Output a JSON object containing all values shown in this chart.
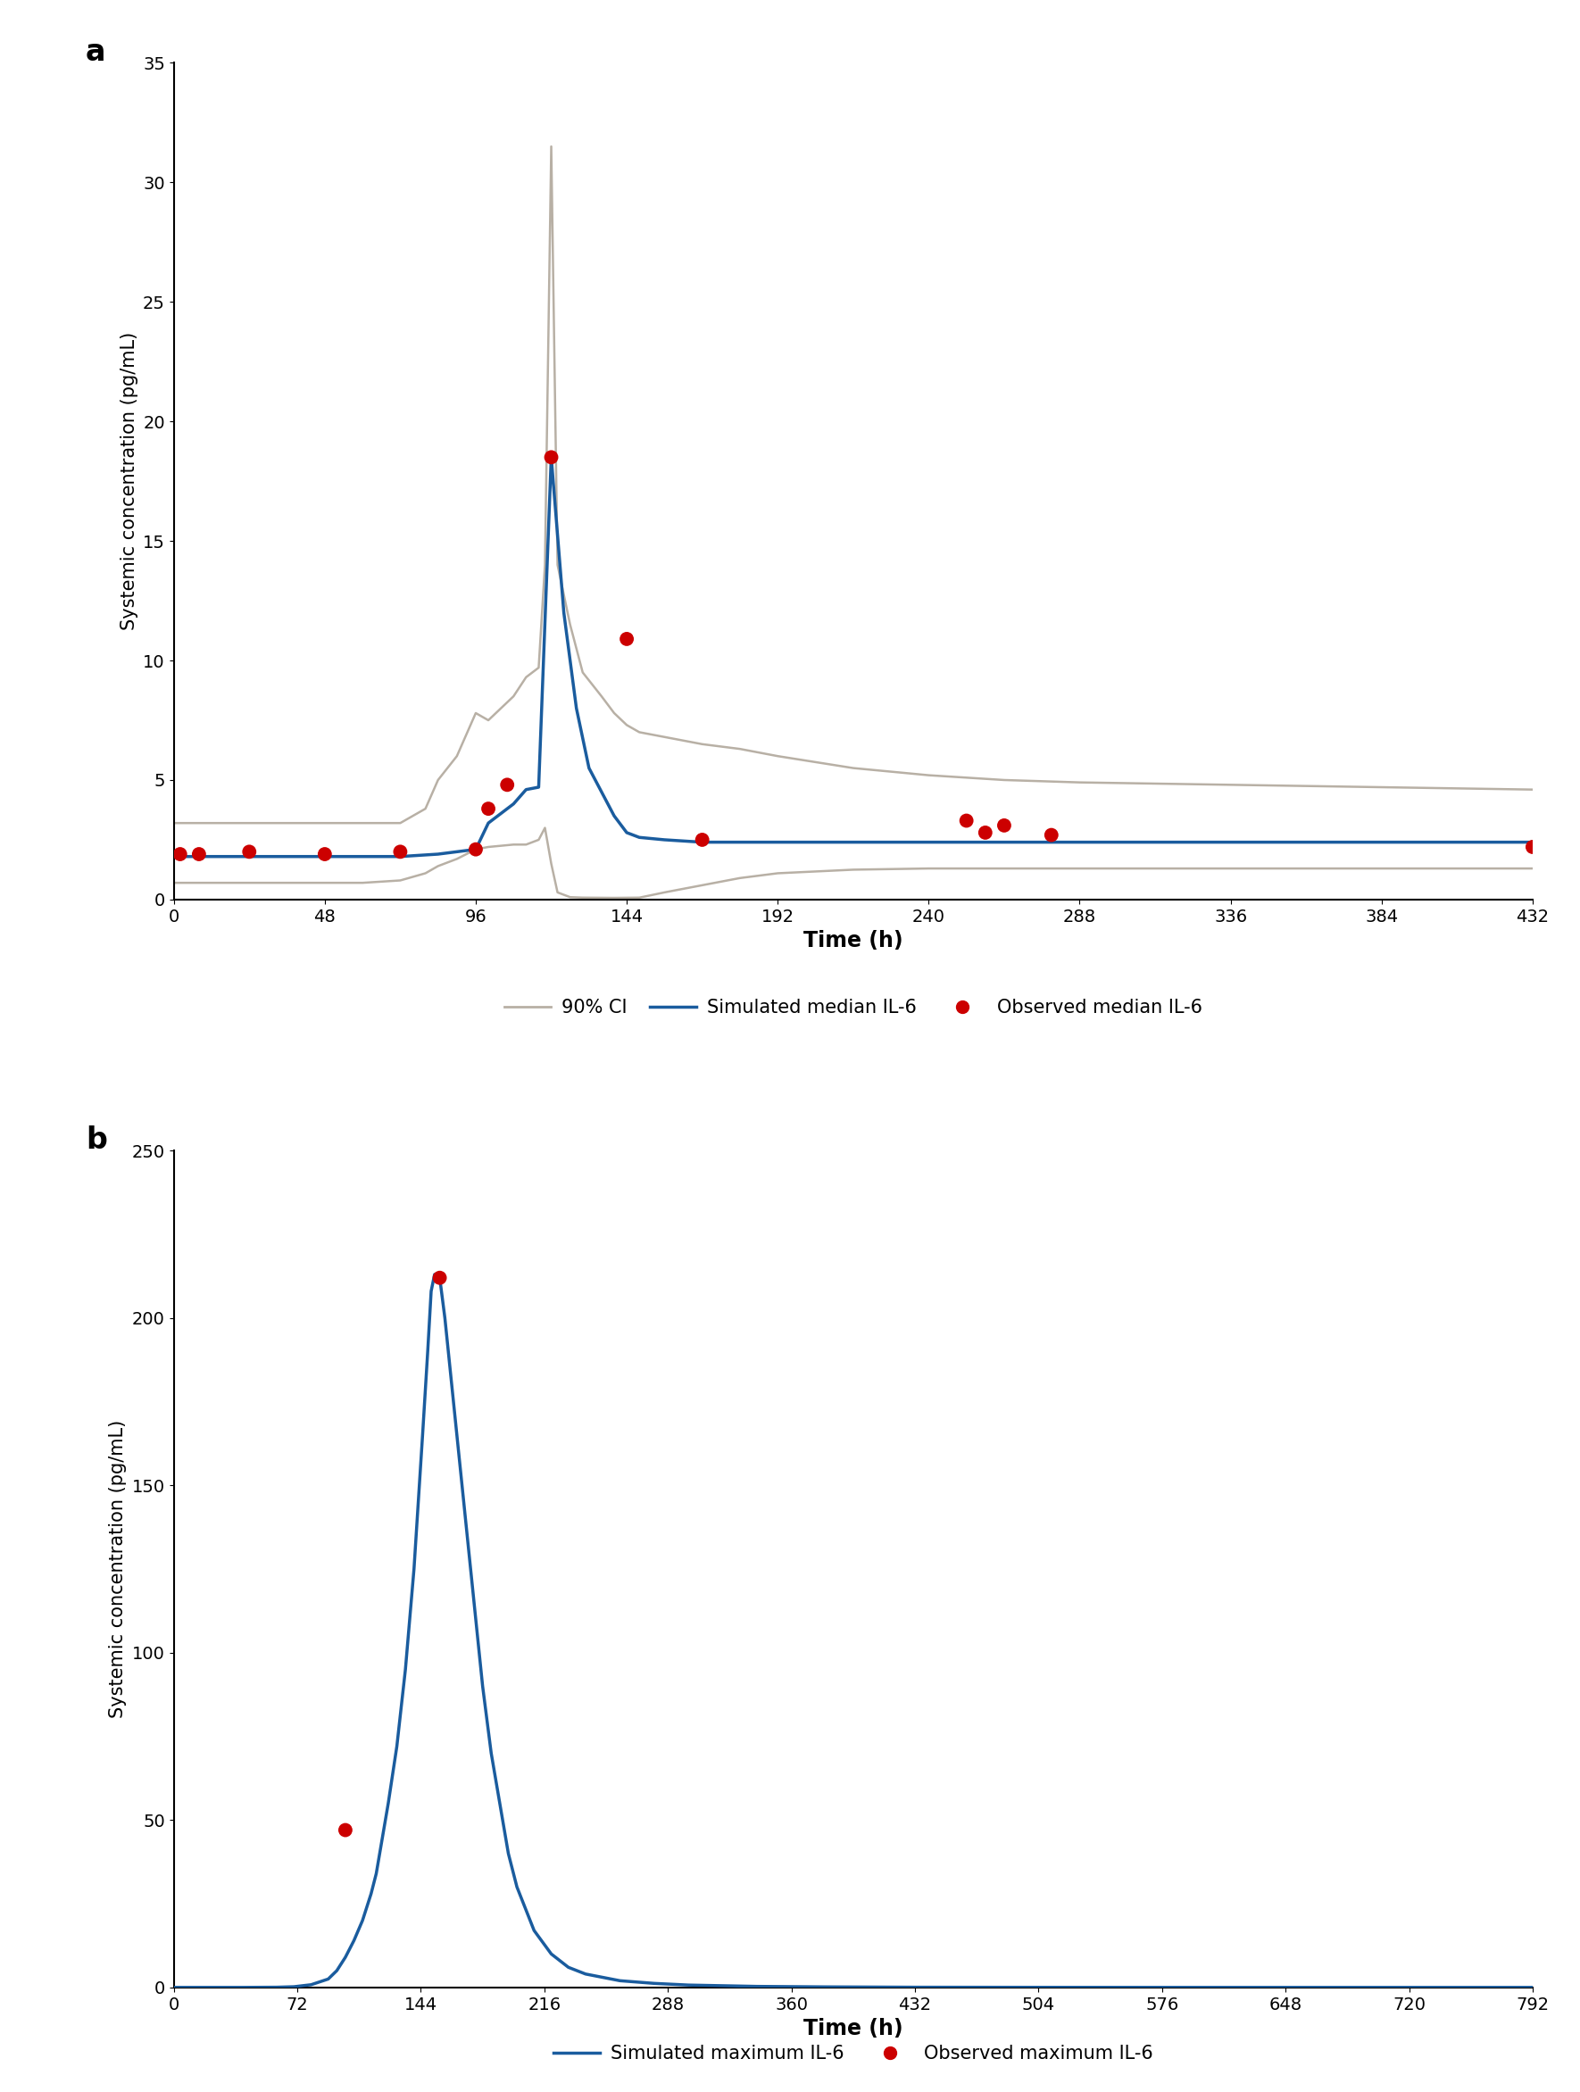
{
  "panel_a": {
    "title_label": "a",
    "xlabel": "Time (h)",
    "ylabel": "Systemic concentration (pg/mL)",
    "xlim": [
      0,
      432
    ],
    "ylim": [
      0,
      35
    ],
    "xticks": [
      0,
      48,
      96,
      144,
      192,
      240,
      288,
      336,
      384,
      432
    ],
    "yticks": [
      0,
      5,
      10,
      15,
      20,
      25,
      30,
      35
    ],
    "simulated_median": {
      "x": [
        0,
        1,
        12,
        24,
        48,
        72,
        84,
        96,
        100,
        108,
        112,
        116,
        120,
        124,
        128,
        132,
        140,
        144,
        148,
        156,
        168,
        180,
        192,
        216,
        240,
        264,
        288,
        336,
        384,
        432
      ],
      "y": [
        1.8,
        1.8,
        1.8,
        1.8,
        1.8,
        1.8,
        1.9,
        2.1,
        3.2,
        4.0,
        4.6,
        4.7,
        18.5,
        12.0,
        8.0,
        5.5,
        3.5,
        2.8,
        2.6,
        2.5,
        2.4,
        2.4,
        2.4,
        2.4,
        2.4,
        2.4,
        2.4,
        2.4,
        2.4,
        2.4
      ]
    },
    "ci_upper": {
      "x": [
        0,
        1,
        12,
        24,
        48,
        60,
        72,
        80,
        84,
        90,
        96,
        100,
        104,
        108,
        112,
        116,
        118,
        120,
        122,
        126,
        130,
        136,
        140,
        144,
        148,
        156,
        168,
        180,
        192,
        216,
        240,
        264,
        288,
        336,
        384,
        432
      ],
      "y": [
        3.2,
        3.2,
        3.2,
        3.2,
        3.2,
        3.2,
        3.2,
        3.8,
        5.0,
        6.0,
        7.8,
        7.5,
        8.0,
        8.5,
        9.3,
        9.7,
        14.0,
        31.5,
        14.0,
        11.5,
        9.5,
        8.5,
        7.8,
        7.3,
        7.0,
        6.8,
        6.5,
        6.3,
        6.0,
        5.5,
        5.2,
        5.0,
        4.9,
        4.8,
        4.7,
        4.6
      ]
    },
    "ci_lower": {
      "x": [
        0,
        1,
        12,
        24,
        48,
        60,
        72,
        80,
        84,
        90,
        96,
        100,
        108,
        112,
        116,
        118,
        120,
        122,
        126,
        130,
        140,
        148,
        156,
        168,
        180,
        192,
        216,
        240,
        288,
        336,
        384,
        432
      ],
      "y": [
        0.7,
        0.7,
        0.7,
        0.7,
        0.7,
        0.7,
        0.8,
        1.1,
        1.4,
        1.7,
        2.1,
        2.2,
        2.3,
        2.3,
        2.5,
        3.0,
        1.5,
        0.3,
        0.1,
        0.08,
        0.07,
        0.08,
        0.3,
        0.6,
        0.9,
        1.1,
        1.25,
        1.3,
        1.3,
        1.3,
        1.3,
        1.3
      ]
    },
    "observed_dots": {
      "x": [
        2,
        8,
        24,
        48,
        72,
        96,
        100,
        106,
        120,
        144,
        168,
        252,
        258,
        264,
        279,
        432
      ],
      "y": [
        1.9,
        1.9,
        2.0,
        1.9,
        2.0,
        2.1,
        3.8,
        4.8,
        18.5,
        10.9,
        2.5,
        3.3,
        2.8,
        3.1,
        2.7,
        2.2
      ]
    },
    "legend_items": [
      "90% CI",
      "Simulated median IL-6",
      "Observed median IL-6"
    ],
    "ci_color": "#b8b0a5",
    "median_color": "#1a5c9e",
    "dot_color": "#cc0000"
  },
  "panel_b": {
    "title_label": "b",
    "xlabel": "Time (h)",
    "ylabel": "Systemic concentration (pg/mL)",
    "xlim": [
      0,
      792
    ],
    "ylim": [
      0,
      250
    ],
    "xticks": [
      0,
      72,
      144,
      216,
      288,
      360,
      432,
      504,
      576,
      648,
      720,
      792
    ],
    "yticks": [
      0,
      50,
      100,
      150,
      200,
      250
    ],
    "simulated_line": {
      "x": [
        0,
        20,
        40,
        60,
        70,
        80,
        90,
        95,
        100,
        105,
        110,
        115,
        118,
        120,
        125,
        130,
        135,
        140,
        145,
        148,
        150,
        152,
        155,
        158,
        162,
        165,
        170,
        175,
        180,
        185,
        190,
        195,
        200,
        210,
        220,
        230,
        240,
        260,
        280,
        300,
        340,
        380,
        432,
        504,
        576,
        650,
        720,
        792
      ],
      "y": [
        0,
        0,
        0,
        0.05,
        0.2,
        0.8,
        2.5,
        5.0,
        9.0,
        14.0,
        20.0,
        28.0,
        34.0,
        40.0,
        55.0,
        72.0,
        95.0,
        125.0,
        165.0,
        190.0,
        208.0,
        213.0,
        212.0,
        200.0,
        180.0,
        165.0,
        140.0,
        115.0,
        90.0,
        70.0,
        55.0,
        40.0,
        30.0,
        17.0,
        10.0,
        6.0,
        4.0,
        2.0,
        1.2,
        0.7,
        0.3,
        0.15,
        0.05,
        0.02,
        0.005,
        0.001,
        0.0005,
        0.0001
      ]
    },
    "observed_dots": {
      "x": [
        100,
        155
      ],
      "y": [
        47.0,
        212.0
      ]
    },
    "legend_items": [
      "Simulated maximum IL-6",
      "Observed maximum IL-6"
    ],
    "median_color": "#1a5c9e",
    "dot_color": "#cc0000"
  },
  "figure_bg": "#ffffff"
}
